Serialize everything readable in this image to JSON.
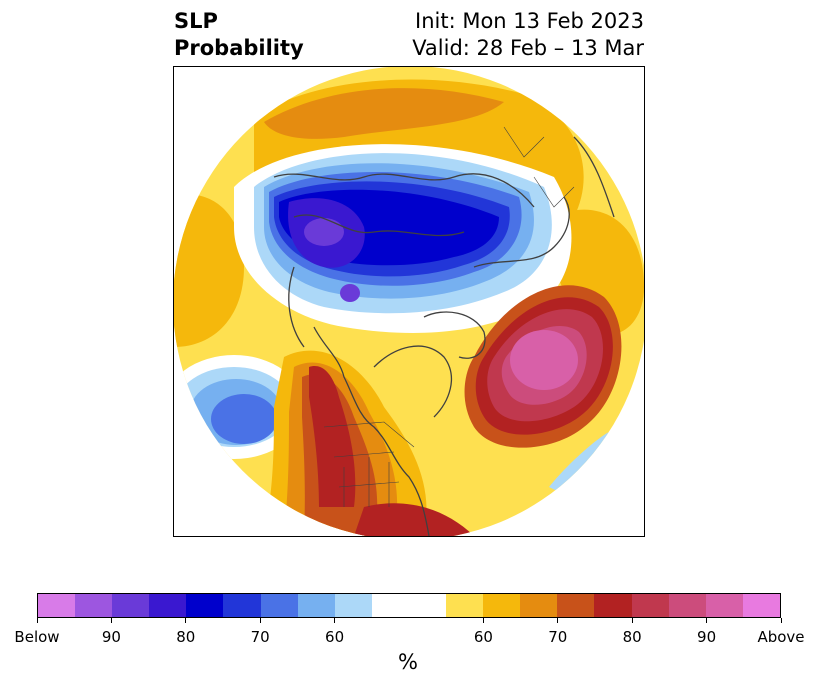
{
  "header": {
    "title_line1": "SLP",
    "title_line2": "Probability",
    "init": "Init: Mon 13 Feb 2023",
    "valid": "Valid: 28 Feb – 13 Mar"
  },
  "colorbar": {
    "colors": [
      "#d87be8",
      "#9d56e0",
      "#6a3ad8",
      "#3a18d0",
      "#0000cc",
      "#2236d8",
      "#4a72e6",
      "#76b0f0",
      "#acd8f8",
      "#ffffff",
      "#ffffff",
      "#fee050",
      "#f5b80c",
      "#e58c10",
      "#c8521a",
      "#b22222",
      "#c0384e",
      "#cc4c7c",
      "#d860a8",
      "#e87ae0"
    ],
    "tick_labels": [
      "Below",
      "90",
      "80",
      "70",
      "60",
      "60",
      "70",
      "80",
      "90",
      "Above"
    ],
    "unit": "%"
  }
}
